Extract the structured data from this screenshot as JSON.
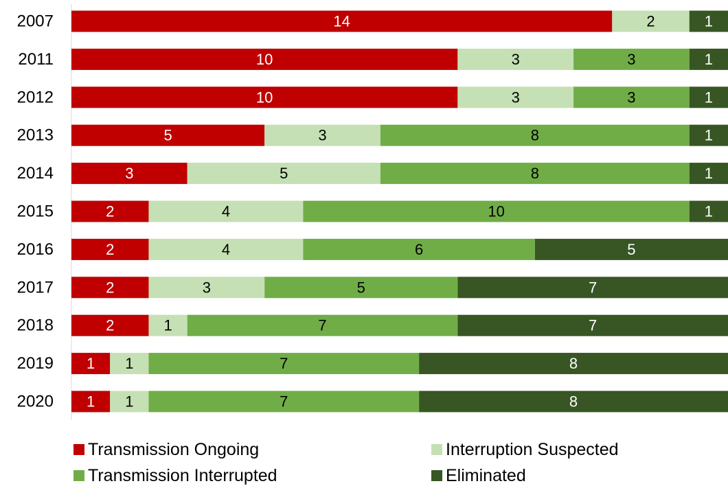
{
  "chart_data": {
    "type": "stacked_barh",
    "categories": [
      "2007",
      "2011",
      "2012",
      "2013",
      "2014",
      "2015",
      "2016",
      "2017",
      "2018",
      "2019",
      "2020"
    ],
    "series": [
      {
        "name": "Transmission Ongoing",
        "color": "#c00000",
        "label_color": "#ffffff",
        "values": [
          14,
          10,
          10,
          5,
          3,
          2,
          2,
          2,
          2,
          1,
          1
        ]
      },
      {
        "name": "Interruption Suspected",
        "color": "#c5e0b4",
        "label_color": "#000000",
        "values": [
          2,
          3,
          3,
          3,
          5,
          4,
          4,
          3,
          1,
          1,
          1
        ]
      },
      {
        "name": "Transmission Interrupted",
        "color": "#70ad47",
        "label_color": "#000000",
        "values": [
          0,
          3,
          3,
          8,
          8,
          10,
          6,
          5,
          7,
          7,
          7
        ]
      },
      {
        "name": "Eliminated",
        "color": "#375623",
        "label_color": "#ffffff",
        "values": [
          1,
          1,
          1,
          1,
          1,
          1,
          5,
          7,
          7,
          8,
          8
        ]
      }
    ],
    "xlim": [
      0,
      17
    ]
  }
}
